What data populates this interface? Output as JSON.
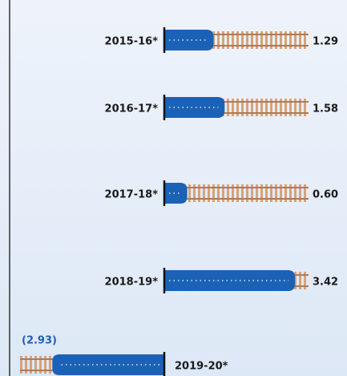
{
  "chart_data": {
    "type": "train-bar",
    "categories": [
      "2015-16*",
      "2016-17*",
      "2017-18*",
      "2018-19*",
      "2019-20*"
    ],
    "values": [
      1.29,
      1.58,
      0.6,
      3.42,
      -2.93
    ],
    "value_labels": [
      "1.29",
      "1.58",
      "0.60",
      "3.42",
      "(2.93)"
    ],
    "color": "#1b62b6"
  }
}
